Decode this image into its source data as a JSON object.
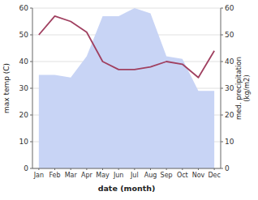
{
  "chart_data": {
    "type": "line",
    "categories": [
      "Jan",
      "Feb",
      "Mar",
      "Apr",
      "May",
      "Jun",
      "Jul",
      "Aug",
      "Sep",
      "Oct",
      "Nov",
      "Dec"
    ],
    "series": [
      {
        "type": "area",
        "color": "#c8d4f5",
        "values": [
          35,
          35,
          34,
          42,
          57,
          57,
          60,
          58,
          42,
          41,
          29,
          29
        ]
      },
      {
        "type": "line",
        "color": "#a04060",
        "axis": "y2",
        "values": [
          50,
          57,
          55,
          51,
          40,
          37,
          37,
          38,
          40,
          39,
          34,
          44
        ]
      }
    ],
    "xlabel": "date (month)",
    "ylabel": "max temp (C)",
    "y2label": "med. precipitation\n(kg/m2)",
    "ylim": [
      0,
      60
    ],
    "yticks": [
      0,
      10,
      20,
      30,
      40,
      50,
      60
    ],
    "y2lim": [
      0,
      60
    ],
    "y2ticks": [
      0,
      10,
      20,
      30,
      40,
      50,
      60
    ],
    "grid": true
  }
}
